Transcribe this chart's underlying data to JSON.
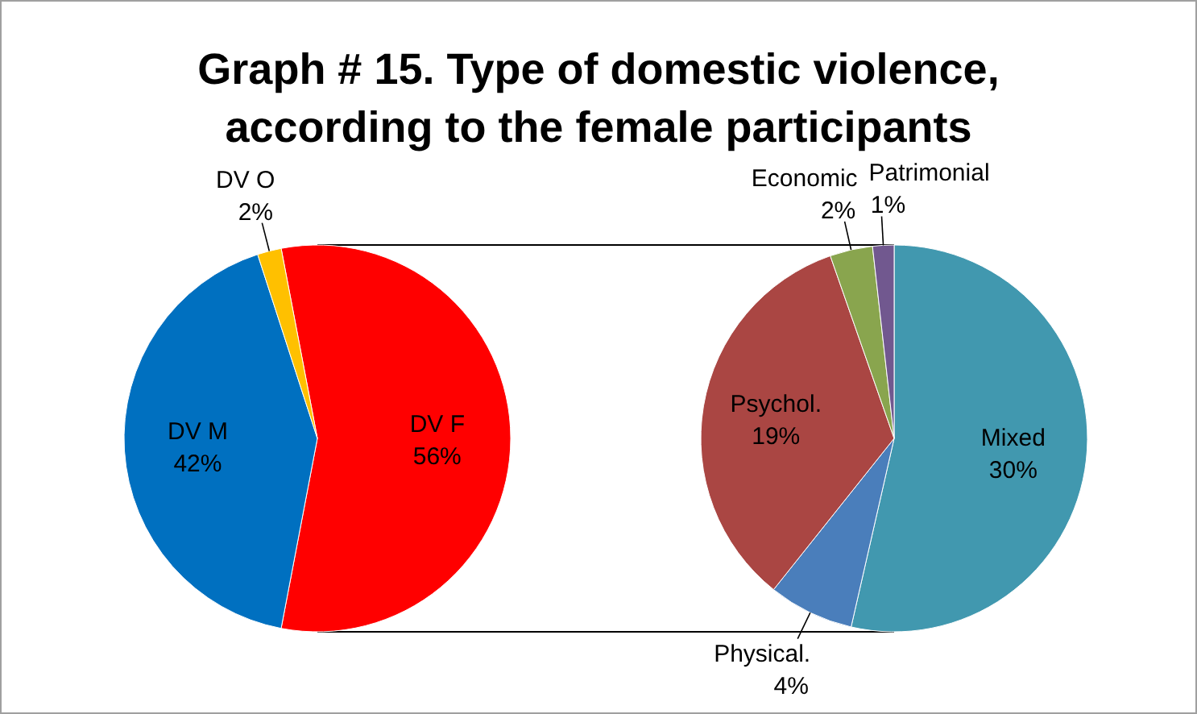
{
  "chart_data": [
    {
      "type": "pie",
      "title": "Graph # 15. Type of domestic violence, according to the female participants",
      "categories": [
        "DV F",
        "DV M",
        "DV O"
      ],
      "values": [
        56,
        42,
        2
      ],
      "colors": [
        "#ff0000",
        "#0070c0",
        "#ffc000"
      ],
      "value_labels": [
        "56%",
        "42%",
        "2%"
      ]
    },
    {
      "type": "pie",
      "categories": [
        "Mixed",
        "Physical.",
        "Psychol.",
        "Economic",
        "Patrimonial"
      ],
      "values": [
        30,
        4,
        19,
        2,
        1
      ],
      "colors": [
        "#4198af",
        "#4a7ebb",
        "#aa4643",
        "#89a54e",
        "#71588f"
      ],
      "value_labels": [
        "30%",
        "4%",
        "19%",
        "2%",
        "1%"
      ]
    }
  ]
}
